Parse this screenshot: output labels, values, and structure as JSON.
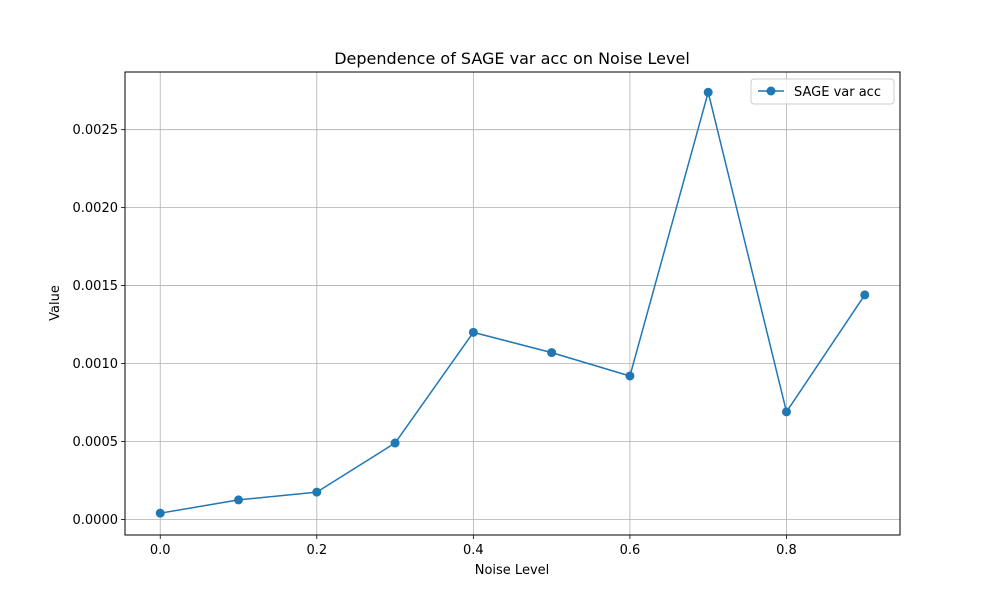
{
  "chart_data": {
    "type": "line",
    "title": "Dependence of SAGE var acc on Noise Level",
    "xlabel": "Noise Level",
    "ylabel": "Value",
    "x": [
      0.0,
      0.1,
      0.2,
      0.3,
      0.4,
      0.5,
      0.6,
      0.7,
      0.8,
      0.9
    ],
    "series": [
      {
        "name": "SAGE var acc",
        "values": [
          4e-05,
          0.000125,
          0.000175,
          0.00049,
          0.0012,
          0.00107,
          0.00092,
          0.00274,
          0.00069,
          0.00144
        ],
        "color": "#1f77b4",
        "marker": "circle"
      }
    ],
    "xlim": [
      -0.045,
      0.945
    ],
    "ylim": [
      -0.0001,
      0.00287
    ],
    "xticks": [
      0.0,
      0.2,
      0.4,
      0.6,
      0.8
    ],
    "xtick_labels": [
      "0.0",
      "0.2",
      "0.4",
      "0.6",
      "0.8"
    ],
    "yticks": [
      0.0,
      0.0005,
      0.001,
      0.0015,
      0.002,
      0.0025
    ],
    "ytick_labels": [
      "0.0000",
      "0.0005",
      "0.0010",
      "0.0015",
      "0.0020",
      "0.0025"
    ],
    "grid": true,
    "legend_position": "top-right"
  }
}
